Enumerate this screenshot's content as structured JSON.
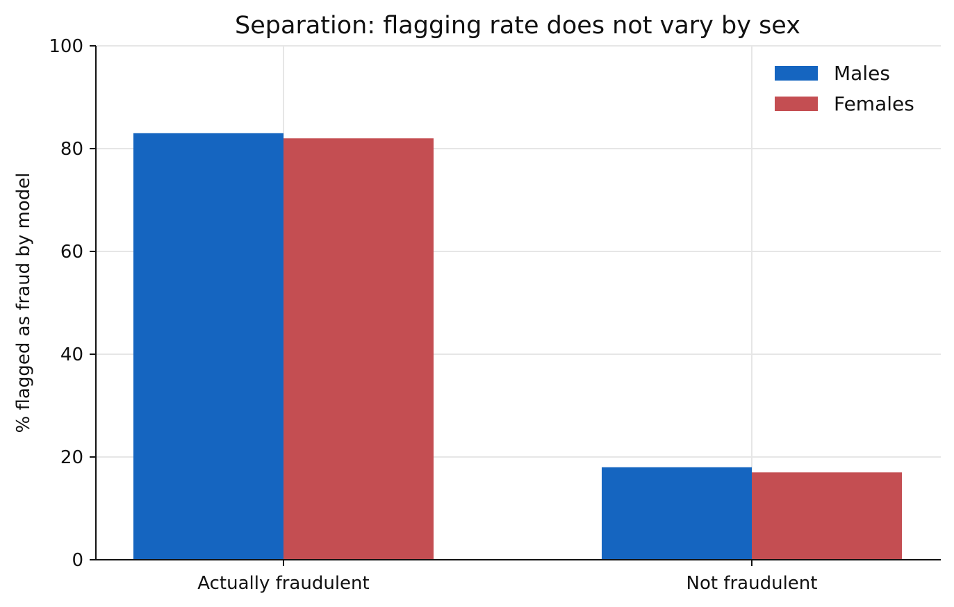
{
  "chart_data": {
    "type": "bar",
    "title": "Separation: flagging rate does not vary by sex",
    "xlabel": "",
    "ylabel": "% flagged as fraud by model",
    "categories": [
      "Actually fraudulent",
      "Not fraudulent"
    ],
    "series": [
      {
        "name": "Males",
        "values": [
          83,
          18
        ],
        "color": "#1565c0"
      },
      {
        "name": "Females",
        "values": [
          82,
          17
        ],
        "color": "#c44e52"
      }
    ],
    "ylim": [
      0,
      100
    ],
    "yticks": [
      0,
      20,
      40,
      60,
      80,
      100
    ],
    "grid": true,
    "legend_position": "top-right"
  }
}
